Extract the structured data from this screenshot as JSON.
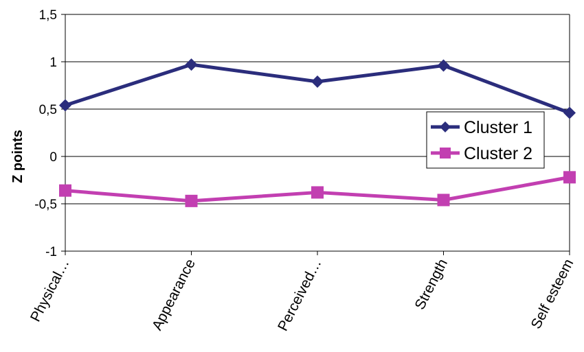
{
  "chart_data": {
    "type": "line",
    "title": "",
    "xlabel": "",
    "ylabel": "Z points",
    "categories": [
      "Physical…",
      "Appearance",
      "Perceived…",
      "Strength",
      "Self esteem"
    ],
    "ylim": [
      -1,
      1.5
    ],
    "yticks": [
      -1,
      -0.5,
      0,
      0.5,
      1,
      1.5
    ],
    "ytick_labels": [
      "-1",
      "-0,5",
      "0",
      "0,5",
      "1",
      "1,5"
    ],
    "grid": "horizontal",
    "legend_position": "right",
    "series": [
      {
        "name": "Cluster 1",
        "values": [
          0.54,
          0.97,
          0.79,
          0.96,
          0.46
        ],
        "color": "#2b2d7c",
        "marker": "diamond"
      },
      {
        "name": "Cluster 2",
        "values": [
          -0.36,
          -0.47,
          -0.38,
          -0.46,
          -0.22
        ],
        "color": "#c23fb1",
        "marker": "square"
      }
    ]
  }
}
